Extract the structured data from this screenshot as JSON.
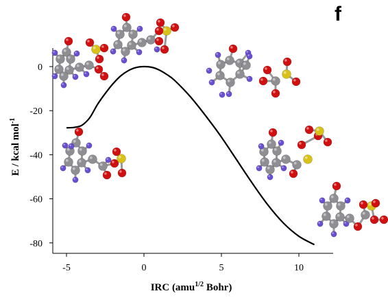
{
  "panel_label": "f",
  "chart_data": {
    "type": "line",
    "xlabel_parts": [
      "IRC (amu",
      "1/2",
      " Bohr)"
    ],
    "ylabel_parts": [
      "E / kcal mol",
      "-1"
    ],
    "xlim": [
      -6,
      12
    ],
    "ylim": [
      -84,
      9
    ],
    "x_ticks": [
      -5,
      0,
      5,
      10
    ],
    "y_ticks": [
      0,
      -20,
      -40,
      -60,
      -80
    ],
    "grid": false,
    "series": [
      {
        "color": "#000000",
        "x": [
          -5.0,
          -4.5,
          -4.0,
          -3.5,
          -3.0,
          -2.5,
          -2.0,
          -1.5,
          -1.0,
          -0.5,
          0.0,
          0.5,
          1.0,
          1.5,
          2.0,
          3.0,
          4.0,
          5.0,
          6.0,
          7.0,
          8.0,
          9.0,
          10.0,
          11.0
        ],
        "y": [
          -27.8,
          -27.6,
          -26.6,
          -23.2,
          -17.2,
          -12.2,
          -7.8,
          -4.2,
          -1.8,
          -0.4,
          0.0,
          -0.3,
          -1.6,
          -3.7,
          -6.4,
          -13.7,
          -22.5,
          -32.0,
          -42.5,
          -53.0,
          -62.8,
          -71.0,
          -77.0,
          -80.8
        ]
      }
    ]
  },
  "molecules": [
    {
      "name": "molecule-reactant-top-left"
    },
    {
      "name": "molecule-transition-state"
    },
    {
      "name": "molecule-intermediate-right"
    },
    {
      "name": "molecule-reactant-complex-left"
    },
    {
      "name": "molecule-intermediate-lower-right"
    },
    {
      "name": "molecule-product-complex"
    }
  ],
  "colors": {
    "carbon": "#8e8e93",
    "hydrogen": "#6a4fd0",
    "oxygen": "#d01010",
    "sulfur": "#d8c21a",
    "bond": "#9a9a9a",
    "curve": "#000000"
  }
}
